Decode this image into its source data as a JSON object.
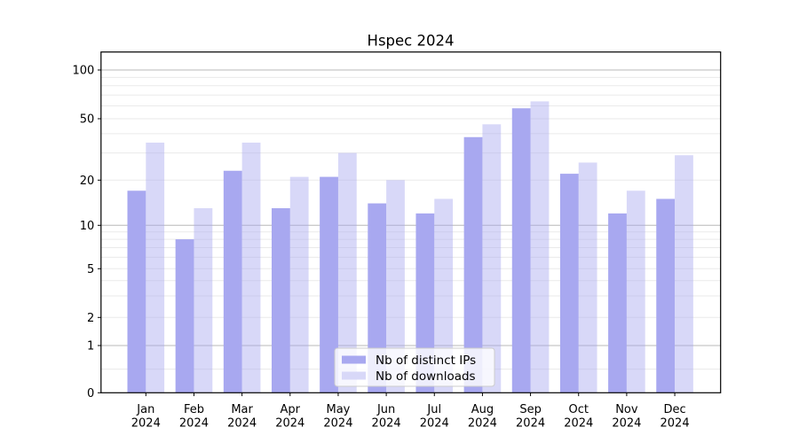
{
  "title": "Hspec 2024",
  "chart_data": {
    "type": "bar",
    "title": "Hspec 2024",
    "yscale": "symlog-like (log above 1, compressed linear 0-1)",
    "grid": true,
    "legend_position": "lower center",
    "categories": [
      "Jan",
      "Feb",
      "Mar",
      "Apr",
      "May",
      "Jun",
      "Jul",
      "Aug",
      "Sep",
      "Oct",
      "Nov",
      "Dec"
    ],
    "year_label": "2024",
    "series": [
      {
        "name": "Nb of distinct IPs",
        "color": "#a8a8f0",
        "opacity": 1,
        "swatch_color": "#a8a8f0",
        "values": [
          17,
          8,
          23,
          13,
          21,
          14,
          12,
          38,
          58,
          22,
          12,
          15
        ]
      },
      {
        "name": "Nb of downloads",
        "color": "#a8a8f0",
        "opacity": 0.45,
        "swatch_color": "#d8d8f8",
        "values": [
          35,
          13,
          35,
          21,
          30,
          20,
          15,
          46,
          64,
          26,
          17,
          29
        ]
      }
    ],
    "yticks_labeled": [
      100,
      50,
      20,
      10,
      5,
      2,
      1,
      0
    ],
    "yticks_major": [
      1,
      10,
      100
    ],
    "yticks_minor": [
      0.5,
      3,
      4,
      6,
      7,
      8,
      9,
      30,
      40,
      60,
      70,
      80,
      90
    ],
    "ylim": [
      0,
      125
    ],
    "colors": {
      "grid_major": "#b8b8b8",
      "grid_minor": "#eaeaea",
      "spine": "#000000",
      "legend_border": "#cccccc",
      "legend_bg": "#ffffff"
    }
  }
}
